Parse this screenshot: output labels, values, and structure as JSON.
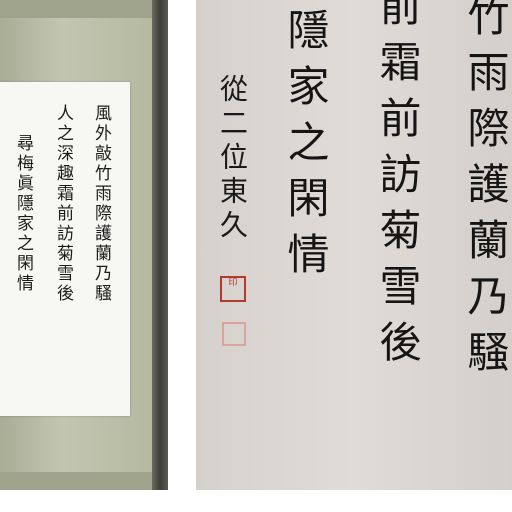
{
  "poem": {
    "line1": "風外敲竹雨際護蘭乃騷",
    "line2": "人之深趣霜前訪菊雪後",
    "line3": "尋梅眞隱家之閑情"
  },
  "detail": {
    "c1": "竹雨際護蘭乃騷",
    "c2": "前霜前訪菊雪後",
    "c3": "隱家之閑情"
  },
  "signature": "從二位東久",
  "seal": {
    "text": "印",
    "color": "#b23b2e"
  }
}
